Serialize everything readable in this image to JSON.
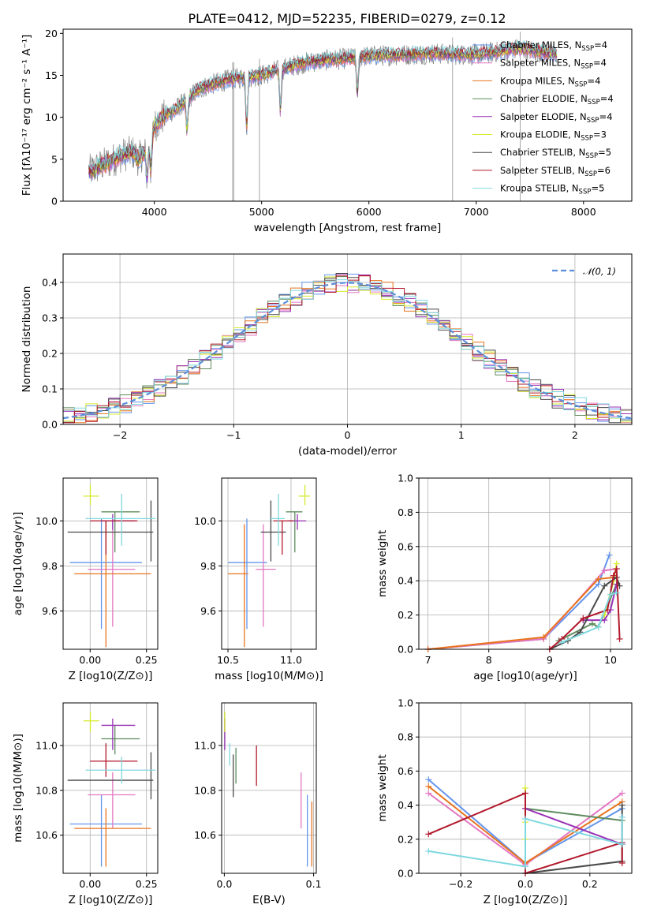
{
  "chart_data": [
    {
      "id": "spectrum",
      "type": "line",
      "title": "PLATE=0412, MJD=52235, FIBERID=0279, z=0.12",
      "xlabel": "wavelength [Angstrom, rest frame]",
      "ylabel": "Flux [fλ10⁻¹⁷ erg cm⁻² s⁻¹ A⁻¹]",
      "xlim": [
        3150,
        8450
      ],
      "ylim": [
        0,
        20.5
      ],
      "xticks": [
        "4000",
        "5000",
        "6000",
        "7000",
        "8000"
      ],
      "yticks": [
        "0",
        "5",
        "10",
        "15",
        "20"
      ],
      "legend_position": "top-right",
      "data_spectrum": {
        "name": "data",
        "color": "#808080"
      },
      "continuum_knots": {
        "x": [
          3390,
          3500,
          3600,
          3700,
          3800,
          3850,
          3950,
          4000,
          4100,
          4200,
          4300,
          4400,
          4500,
          4700,
          4860,
          5000,
          5200,
          5400,
          5600,
          5800,
          6000,
          6200,
          6400,
          6600,
          6800,
          7000,
          7200,
          7400,
          7600,
          7750
        ],
        "y": [
          3.5,
          4.2,
          4.8,
          5.5,
          5.8,
          5.0,
          6.5,
          9.0,
          10.2,
          11.0,
          12.0,
          13.2,
          13.8,
          14.5,
          14.8,
          15.0,
          15.8,
          16.5,
          16.8,
          17.0,
          17.3,
          17.4,
          17.5,
          17.6,
          17.5,
          17.5,
          17.8,
          18.2,
          17.8,
          17.5
        ]
      },
      "absorption_lines": [
        {
          "x": 3933,
          "depth": 0.6
        },
        {
          "x": 3968,
          "depth": 0.5
        },
        {
          "x": 4305,
          "depth": 0.3
        },
        {
          "x": 4861,
          "depth": 0.4
        },
        {
          "x": 5175,
          "depth": 0.3
        },
        {
          "x": 5892,
          "depth": 0.25
        }
      ],
      "sky_spikes": [
        {
          "x": 4730,
          "y": 0
        },
        {
          "x": 4740,
          "y": 0
        },
        {
          "x": 4980,
          "y": 0
        },
        {
          "x": 6780,
          "y": 0
        },
        {
          "x": 7410,
          "y": 0
        }
      ],
      "models": [
        {
          "name": "Chabrier MILES, N_SSP=4",
          "color": "#6495ed"
        },
        {
          "name": "Salpeter MILES, N_SSP=4",
          "color": "#e377c2"
        },
        {
          "name": "Kroupa MILES, N_SSP=4",
          "color": "#e8741f"
        },
        {
          "name": "Chabrier ELODIE, N_SSP=4",
          "color": "#5e8c5e"
        },
        {
          "name": "Salpeter ELODIE, N_SSP=4",
          "color": "#9932b4"
        },
        {
          "name": "Kroupa ELODIE, N_SSP=3",
          "color": "#d7ea2c"
        },
        {
          "name": "Chabrier STELIB, N_SSP=5",
          "color": "#4a4a4a"
        },
        {
          "name": "Salpeter STELIB, N_SSP=6",
          "color": "#b2182b"
        },
        {
          "name": "Kroupa STELIB, N_SSP=5",
          "color": "#7fd8e0"
        }
      ],
      "legend_entries": [
        {
          "prefix": "Chabrier MILES, N",
          "sub": "SSP",
          "suffix": "=4"
        },
        {
          "prefix": "Salpeter MILES, N",
          "sub": "SSP",
          "suffix": "=4"
        },
        {
          "prefix": "Kroupa MILES, N",
          "sub": "SSP",
          "suffix": "=4"
        },
        {
          "prefix": "Chabrier ELODIE, N",
          "sub": "SSP",
          "suffix": "=4"
        },
        {
          "prefix": "Salpeter ELODIE, N",
          "sub": "SSP",
          "suffix": "=4"
        },
        {
          "prefix": "Kroupa ELODIE, N",
          "sub": "SSP",
          "suffix": "=3"
        },
        {
          "prefix": "Chabrier STELIB, N",
          "sub": "SSP",
          "suffix": "=5"
        },
        {
          "prefix": "Salpeter STELIB, N",
          "sub": "SSP",
          "suffix": "=6"
        },
        {
          "prefix": "Kroupa STELIB, N",
          "sub": "SSP",
          "suffix": "=5"
        }
      ]
    },
    {
      "id": "residuals",
      "type": "step-histogram",
      "xlabel": "(data-model)/error",
      "ylabel": "Normed distribution",
      "xlim": [
        -2.5,
        2.5
      ],
      "ylim": [
        0,
        0.48
      ],
      "xticks": [
        "−2",
        "−1",
        "0",
        "1",
        "2"
      ],
      "yticks": [
        "0.0",
        "0.1",
        "0.2",
        "0.3",
        "0.4"
      ],
      "grid": true,
      "bin_edges_start": -2.5,
      "bin_width": 0.1,
      "gaussian": {
        "name": "𝒩(0, 1)",
        "mean": 0,
        "sigma": 1,
        "color": "#5b8fd9",
        "dash": true
      },
      "legend_position": "top-right"
    },
    {
      "id": "age_vs_Z",
      "type": "errorbar",
      "xlabel": "Z [log10(Z/Z⊙)]",
      "ylabel": "age [log10(age/yr)]",
      "xlim": [
        -0.12,
        0.3
      ],
      "ylim": [
        9.43,
        10.19
      ],
      "xticks": [
        "0.00",
        "0.25"
      ],
      "yticks": [
        "9.6",
        "9.8",
        "10.0"
      ],
      "points": [
        {
          "x": 0.08,
          "xerr": [
            0.09,
            0.06
          ],
          "y": 10.01,
          "yerr": [
            0.0,
            0.0
          ],
          "color": "#6495ed",
          "vx": 0.05,
          "vy1": 9.52,
          "vy2": 10.01,
          "hx1": -0.09,
          "hx2": 0.23,
          "hy": 9.815
        },
        {
          "color": "#e377c2",
          "vx": 0.1,
          "vy1": 9.53,
          "vy2": 10.0,
          "hx1": -0.01,
          "hx2": 0.2,
          "hy": 9.785
        },
        {
          "color": "#e8741f",
          "vx": 0.07,
          "vy1": 9.44,
          "vy2": 10.0,
          "hx1": -0.07,
          "hx2": 0.27,
          "hy": 9.765
        },
        {
          "color": "#5e8c5e",
          "vx": 0.11,
          "vy1": 9.86,
          "vy2": 10.04,
          "hx1": 0.05,
          "hx2": 0.22,
          "hy": 10.04
        },
        {
          "color": "#9932b4",
          "vx": 0.1,
          "vy1": 9.96,
          "vy2": 10.03,
          "hx1": 0.05,
          "hx2": 0.2,
          "hy": 10.0
        },
        {
          "color": "#d7ea2c",
          "vx": 0.001,
          "vy1": 10.07,
          "vy2": 10.16,
          "hx1": -0.03,
          "hx2": 0.04,
          "hy": 10.11
        },
        {
          "color": "#4a4a4a",
          "vx": 0.27,
          "vy1": 9.82,
          "vy2": 10.09,
          "hx1": -0.1,
          "hx2": 0.28,
          "hy": 9.95
        },
        {
          "color": "#b2182b",
          "vx": 0.07,
          "vy1": 9.85,
          "vy2": 10.0,
          "hx1": 0.0,
          "hx2": 0.21,
          "hy": 10.0
        },
        {
          "color": "#7fd8e0",
          "vx": 0.14,
          "vy1": 9.89,
          "vy2": 10.12,
          "hx1": -0.02,
          "hx2": 0.29,
          "hy": 10.01
        }
      ]
    },
    {
      "id": "age_vs_mass",
      "type": "errorbar",
      "xlabel": "mass [log10(M/M⊙)]",
      "xlim": [
        10.45,
        11.2
      ],
      "ylim": [
        9.43,
        10.19
      ],
      "xticks": [
        "10.5",
        "11.0"
      ],
      "yticks": [
        "9.6",
        "9.8",
        "10.0"
      ],
      "points": [
        {
          "color": "#6495ed",
          "vx": 10.65,
          "vy1": 9.52,
          "vy2": 10.01,
          "hx1": 10.5,
          "hx2": 10.81,
          "hy": 9.815
        },
        {
          "color": "#e377c2",
          "vx": 10.78,
          "vy1": 9.53,
          "vy2": 9.985,
          "hx1": 10.72,
          "hx2": 10.88,
          "hy": 9.785
        },
        {
          "color": "#e8741f",
          "vx": 10.63,
          "vy1": 9.44,
          "vy2": 9.985,
          "hx1": 10.5,
          "hx2": 10.66,
          "hy": 9.765
        },
        {
          "color": "#5e8c5e",
          "vx": 11.03,
          "vy1": 9.86,
          "vy2": 10.04,
          "hx1": 10.96,
          "hx2": 11.09,
          "hy": 10.04
        },
        {
          "color": "#9932b4",
          "vx": 11.05,
          "vy1": 9.96,
          "vy2": 10.03,
          "hx1": 10.98,
          "hx2": 11.12,
          "hy": 10.0
        },
        {
          "color": "#d7ea2c",
          "vx": 11.11,
          "vy1": 10.07,
          "vy2": 10.16,
          "hx1": 11.06,
          "hx2": 11.15,
          "hy": 10.11
        },
        {
          "color": "#4a4a4a",
          "vx": 10.84,
          "vy1": 9.82,
          "vy2": 10.09,
          "hx1": 10.76,
          "hx2": 10.96,
          "hy": 9.95
        },
        {
          "color": "#b2182b",
          "vx": 10.93,
          "vy1": 9.85,
          "vy2": 10.0,
          "hx1": 10.86,
          "hx2": 11.02,
          "hy": 10.0
        },
        {
          "color": "#7fd8e0",
          "vx": 10.9,
          "vy1": 9.89,
          "vy2": 10.12,
          "hx1": 10.83,
          "hx2": 10.95,
          "hy": 10.01
        }
      ]
    },
    {
      "id": "massweight_vs_age",
      "type": "line",
      "xlabel": "age  [log10(age/yr)]",
      "ylabel": "mass weight",
      "xlim": [
        6.85,
        10.35
      ],
      "ylim": [
        0,
        1.0
      ],
      "xticks": [
        "7",
        "8",
        "9",
        "10"
      ],
      "yticks": [
        "0.0",
        "0.2",
        "0.4",
        "0.6",
        "0.8",
        "1.0"
      ],
      "grid": true,
      "series": [
        {
          "color": "#6495ed",
          "x": [
            7.0,
            8.9,
            9.8,
            9.98
          ],
          "y": [
            0.0,
            0.06,
            0.38,
            0.55
          ]
        },
        {
          "color": "#e377c2",
          "x": [
            7.0,
            8.9,
            9.9,
            10.1
          ],
          "y": [
            0.0,
            0.06,
            0.46,
            0.47
          ]
        },
        {
          "color": "#e8741f",
          "x": [
            7.0,
            8.9,
            9.8,
            10.05
          ],
          "y": [
            0.0,
            0.07,
            0.41,
            0.42
          ]
        },
        {
          "color": "#5e8c5e",
          "x": [
            9.15,
            9.7,
            9.8,
            10.1
          ],
          "y": [
            0.05,
            0.15,
            0.13,
            0.38
          ]
        },
        {
          "color": "#9932b4",
          "x": [
            9.55,
            9.9,
            10.0,
            10.1
          ],
          "y": [
            0.17,
            0.17,
            0.23,
            0.38
          ]
        },
        {
          "color": "#d7ea2c",
          "x": [
            9.9,
            10.05,
            10.1
          ],
          "y": [
            0.2,
            0.4,
            0.5
          ]
        },
        {
          "color": "#4a4a4a",
          "x": [
            9.0,
            9.3,
            9.5,
            9.9,
            10.1,
            10.15
          ],
          "y": [
            0.0,
            0.05,
            0.1,
            0.37,
            0.42,
            0.37
          ]
        },
        {
          "color": "#b2182b",
          "x": [
            9.0,
            9.2,
            9.55,
            9.95,
            10.05,
            10.1,
            10.15
          ],
          "y": [
            0.0,
            0.06,
            0.18,
            0.23,
            0.43,
            0.47,
            0.06
          ]
        },
        {
          "color": "#7fd8e0",
          "x": [
            9.2,
            9.8,
            10.0,
            10.1
          ],
          "y": [
            0.04,
            0.13,
            0.32,
            0.33
          ]
        }
      ]
    },
    {
      "id": "mass_vs_Z",
      "type": "errorbar",
      "xlabel": "Z [log10(Z/Z⊙)]",
      "ylabel": "mass [log10(M/M⊙)]",
      "xlim": [
        -0.12,
        0.3
      ],
      "ylim": [
        10.43,
        11.19
      ],
      "xticks": [
        "0.00",
        "0.25"
      ],
      "yticks": [
        "10.6",
        "10.8",
        "11.0"
      ],
      "points": [
        {
          "color": "#6495ed",
          "vx": 0.05,
          "vy1": 10.46,
          "vy2": 10.78,
          "hx1": -0.09,
          "hx2": 0.23,
          "hy": 10.65
        },
        {
          "color": "#e377c2",
          "vx": 0.1,
          "vy1": 10.63,
          "vy2": 10.88,
          "hx1": -0.01,
          "hx2": 0.2,
          "hy": 10.78
        },
        {
          "color": "#e8741f",
          "vx": 0.07,
          "vy1": 10.46,
          "vy2": 10.72,
          "hx1": -0.07,
          "hx2": 0.27,
          "hy": 10.63
        },
        {
          "color": "#5e8c5e",
          "vx": 0.11,
          "vy1": 10.96,
          "vy2": 11.09,
          "hx1": 0.05,
          "hx2": 0.22,
          "hy": 11.03
        },
        {
          "color": "#9932b4",
          "vx": 0.1,
          "vy1": 10.98,
          "vy2": 11.12,
          "hx1": 0.05,
          "hx2": 0.2,
          "hy": 11.09
        },
        {
          "color": "#d7ea2c",
          "vx": 0.001,
          "vy1": 11.06,
          "vy2": 11.15,
          "hx1": -0.03,
          "hx2": 0.04,
          "hy": 11.11
        },
        {
          "color": "#4a4a4a",
          "vx": 0.27,
          "vy1": 10.76,
          "vy2": 10.97,
          "hx1": -0.1,
          "hx2": 0.28,
          "hy": 10.845
        },
        {
          "color": "#b2182b",
          "vx": 0.07,
          "vy1": 10.86,
          "vy2": 11.01,
          "hx1": 0.0,
          "hx2": 0.21,
          "hy": 10.93
        },
        {
          "color": "#7fd8e0",
          "vx": 0.14,
          "vy1": 10.83,
          "vy2": 10.95,
          "hx1": -0.02,
          "hx2": 0.29,
          "hy": 10.89
        }
      ]
    },
    {
      "id": "mass_vs_EBV",
      "type": "errorbar",
      "xlabel": "E(B-V)",
      "xlim": [
        -0.003,
        0.103
      ],
      "ylim": [
        10.43,
        11.19
      ],
      "xticks": [
        "0.0",
        "0.1"
      ],
      "yticks": [
        "10.6",
        "10.8",
        "11.0"
      ],
      "points": [
        {
          "color": "#6495ed",
          "vx": 0.093,
          "vy1": 10.46,
          "vy2": 10.78
        },
        {
          "color": "#e377c2",
          "vx": 0.086,
          "vy1": 10.63,
          "vy2": 10.88
        },
        {
          "color": "#e8741f",
          "vx": 0.098,
          "vy1": 10.46,
          "vy2": 10.75
        },
        {
          "color": "#5e8c5e",
          "vx": 0.013,
          "vy1": 10.83,
          "vy2": 10.99
        },
        {
          "color": "#9932b4",
          "vx": 0.0005,
          "vy1": 10.98,
          "vy2": 11.12
        },
        {
          "color": "#d7ea2c",
          "vx": 0.0005,
          "vy1": 11.06,
          "vy2": 11.15
        },
        {
          "color": "#4a4a4a",
          "vx": 0.01,
          "vy1": 10.77,
          "vy2": 10.96
        },
        {
          "color": "#b2182b",
          "vx": 0.036,
          "vy1": 10.82,
          "vy2": 11.0
        },
        {
          "color": "#7fd8e0",
          "vx": 0.006,
          "vy1": 10.91,
          "vy2": 11.01
        }
      ]
    },
    {
      "id": "massweight_vs_Z",
      "type": "line",
      "xlabel": "Z [log10(Z/Z⊙)]",
      "ylabel": "mass weight",
      "xlim": [
        -0.33,
        0.33
      ],
      "ylim": [
        0,
        1.0
      ],
      "xticks": [
        "−0.2",
        "0.0",
        "0.2"
      ],
      "yticks": [
        "0.0",
        "0.2",
        "0.4",
        "0.6",
        "0.8",
        "1.0"
      ],
      "grid": true,
      "series": [
        {
          "color": "#6495ed",
          "x": [
            -0.3,
            0.0,
            0.3
          ],
          "y": [
            0.55,
            0.06,
            0.38
          ]
        },
        {
          "color": "#e377c2",
          "x": [
            -0.3,
            0.0,
            0.3
          ],
          "y": [
            0.47,
            0.05,
            0.47
          ]
        },
        {
          "color": "#e8741f",
          "x": [
            -0.3,
            0.0,
            0.3
          ],
          "y": [
            0.51,
            0.06,
            0.42
          ]
        },
        {
          "color": "#5e8c5e",
          "x": [
            0.0,
            0.3
          ],
          "y": [
            0.38,
            0.31
          ]
        },
        {
          "color": "#9932b4",
          "x": [
            0.0,
            0.3
          ],
          "y": [
            0.38,
            0.17
          ]
        },
        {
          "color": "#d7ea2c",
          "x": [
            0.0,
            0.0,
            0.0
          ],
          "y": [
            0.5,
            0.2,
            0.3
          ]
        },
        {
          "color": "#4a4a4a",
          "x": [
            0.0,
            0.3,
            0.3
          ],
          "y": [
            0.0,
            0.07,
            0.4
          ]
        },
        {
          "color": "#b2182b",
          "x": [
            -0.3,
            0.0,
            0.0,
            0.3,
            0.3
          ],
          "y": [
            0.23,
            0.47,
            0.0,
            0.18,
            0.06
          ]
        },
        {
          "color": "#7fd8e0",
          "x": [
            -0.3,
            0.0,
            0.0,
            0.3,
            0.3
          ],
          "y": [
            0.13,
            0.04,
            0.32,
            0.17,
            0.33
          ]
        }
      ]
    }
  ]
}
